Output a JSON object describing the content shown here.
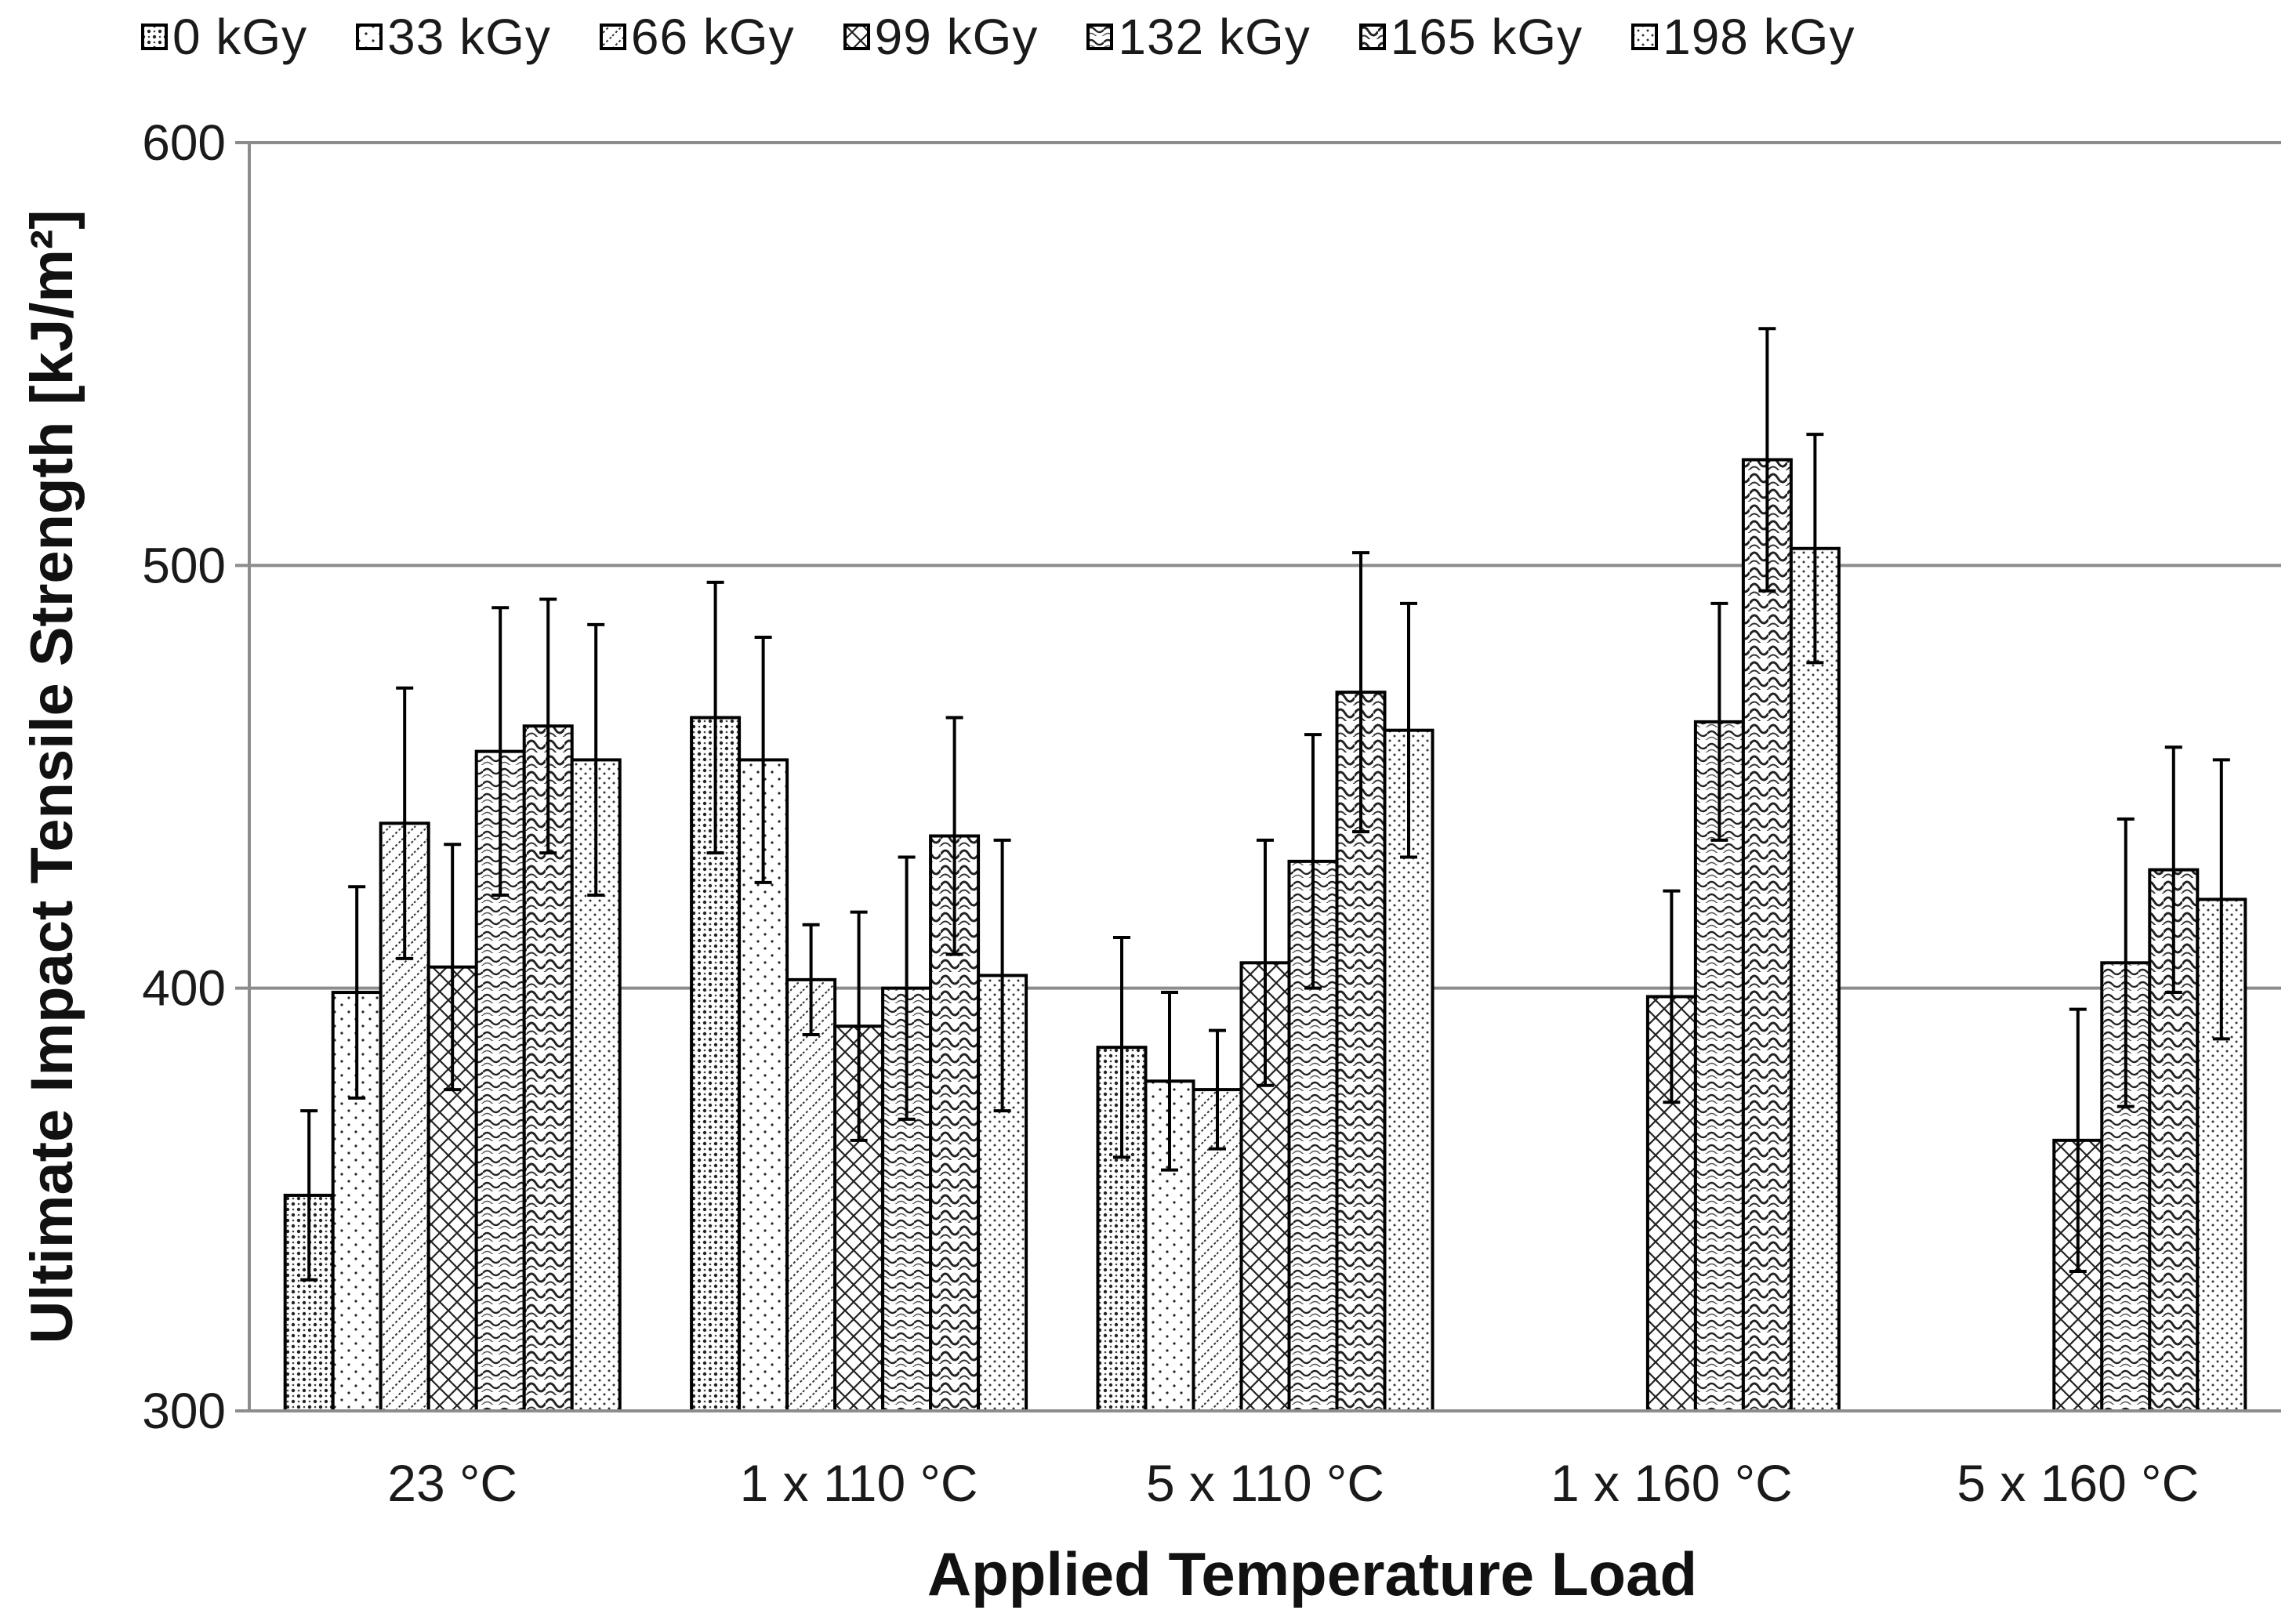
{
  "chart_data": {
    "type": "bar",
    "title": "",
    "xlabel": "Applied Temperature Load",
    "ylabel": "Ultimate Impact Tensile Strength [kJ/m²]",
    "ylim": [
      300,
      600
    ],
    "yticks": [
      "300",
      "400",
      "500",
      "600"
    ],
    "grid": true,
    "legend_position": "top",
    "categories": [
      "23 °C",
      "1 x 110 °C",
      "5 x 110 °C",
      "1 x 160 °C",
      "5 x 160 °C"
    ],
    "series": [
      {
        "name": "0 kGy",
        "pattern": "p0",
        "values": [
          351,
          464,
          386,
          null,
          null
        ],
        "errors": [
          20,
          32,
          26,
          null,
          null
        ]
      },
      {
        "name": "33 kGy",
        "pattern": "p1",
        "values": [
          399,
          454,
          378,
          null,
          null
        ],
        "errors": [
          25,
          29,
          21,
          null,
          null
        ]
      },
      {
        "name": "66 kGy",
        "pattern": "p2",
        "values": [
          439,
          402,
          376,
          null,
          null
        ],
        "errors": [
          32,
          13,
          14,
          null,
          null
        ]
      },
      {
        "name": "99 kGy",
        "pattern": "p3",
        "values": [
          405,
          391,
          406,
          398,
          364
        ],
        "errors": [
          29,
          27,
          29,
          25,
          31
        ]
      },
      {
        "name": "132 kGy",
        "pattern": "p4",
        "values": [
          456,
          400,
          430,
          463,
          406
        ],
        "errors": [
          34,
          31,
          30,
          28,
          34
        ]
      },
      {
        "name": "165 kGy",
        "pattern": "p5",
        "values": [
          462,
          436,
          470,
          525,
          428
        ],
        "errors": [
          30,
          28,
          33,
          31,
          29
        ]
      },
      {
        "name": "198 kGy",
        "pattern": "p6",
        "values": [
          454,
          403,
          461,
          504,
          421
        ],
        "errors": [
          32,
          32,
          30,
          27,
          33
        ]
      }
    ]
  }
}
